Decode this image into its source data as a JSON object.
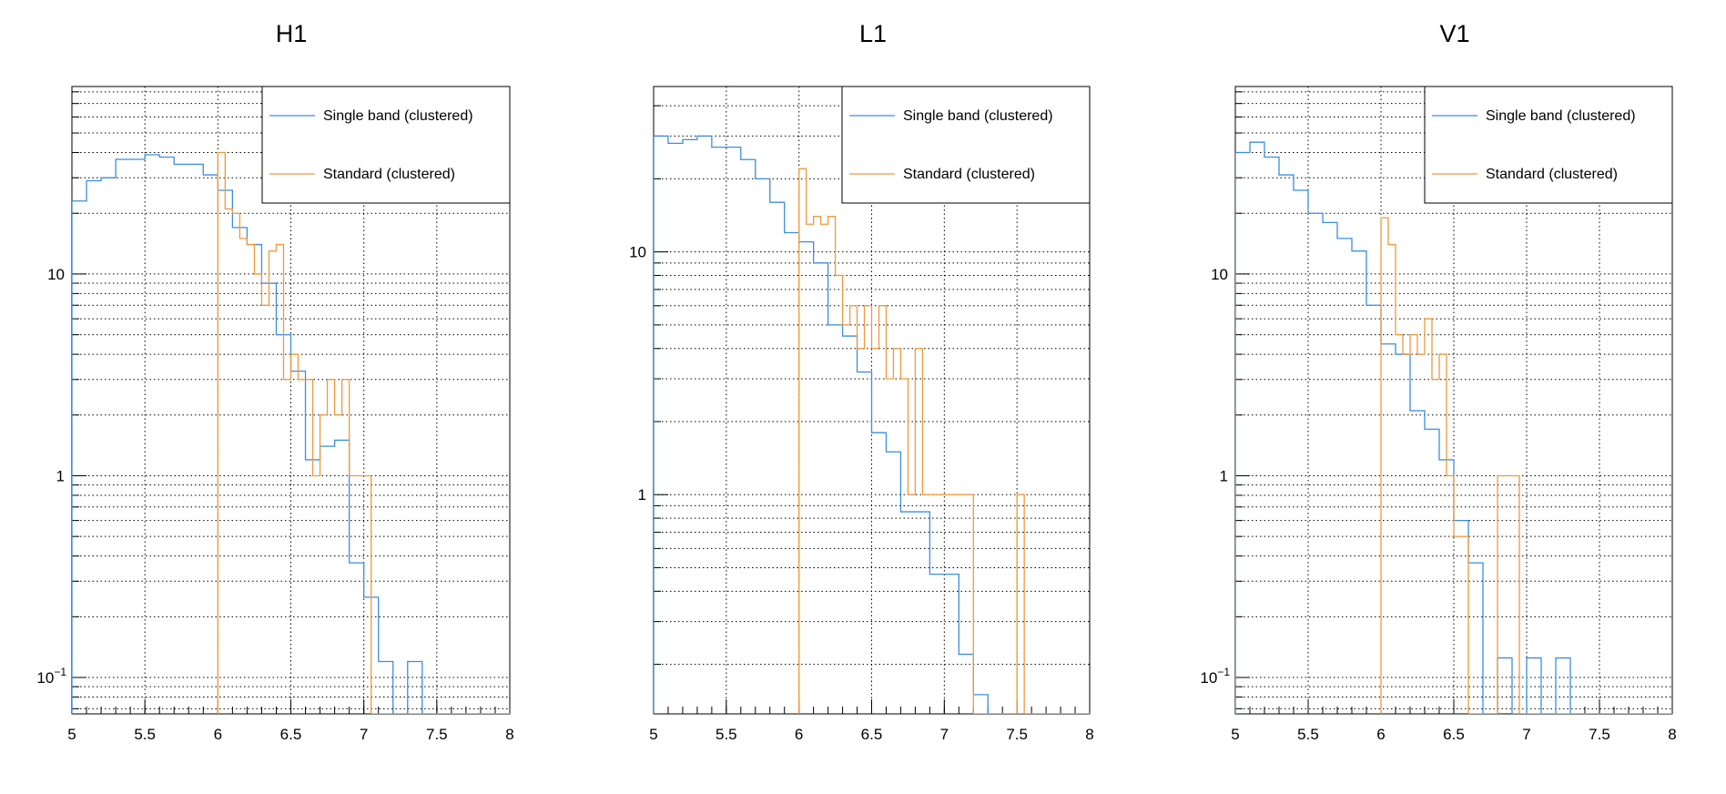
{
  "chart_data": [
    {
      "type": "line",
      "title": "H1",
      "xlim": [
        5,
        8
      ],
      "ylim": [
        0.066,
        85
      ],
      "yscale": "log",
      "x_ticks": [
        "5",
        "5.5",
        "6",
        "6.5",
        "7",
        "7.5",
        "8"
      ],
      "y_ticks": [
        {
          "value": 0.1,
          "label": "10",
          "exp": "−1"
        },
        {
          "value": 1,
          "label": "1"
        },
        {
          "value": 10,
          "label": "10"
        }
      ],
      "grid": true,
      "legend_position": "top-right",
      "bin_width": 0.1,
      "series": [
        {
          "name": "Single band (clustered)",
          "color": "#3a8fe0",
          "bins": [
            [
              5.0,
              23
            ],
            [
              5.1,
              29
            ],
            [
              5.2,
              30
            ],
            [
              5.3,
              37
            ],
            [
              5.4,
              37
            ],
            [
              5.5,
              39
            ],
            [
              5.6,
              38
            ],
            [
              5.7,
              35
            ],
            [
              5.8,
              35
            ],
            [
              5.9,
              31
            ],
            [
              6.0,
              26
            ],
            [
              6.1,
              17
            ],
            [
              6.2,
              14
            ],
            [
              6.3,
              9
            ],
            [
              6.4,
              5
            ],
            [
              6.5,
              3.3
            ],
            [
              6.6,
              1.2
            ],
            [
              6.7,
              1.4
            ],
            [
              6.8,
              1.5
            ],
            [
              6.9,
              0.37
            ],
            [
              7.0,
              0.25
            ],
            [
              7.1,
              0.12
            ],
            [
              7.2,
              0.06
            ],
            [
              7.3,
              0.12
            ],
            [
              7.4,
              0.06
            ]
          ]
        },
        {
          "name": "Standard (clustered)",
          "color": "#ef9a3c",
          "bins": [
            [
              6.0,
              40
            ],
            [
              6.05,
              21
            ],
            [
              6.1,
              20
            ],
            [
              6.15,
              15
            ],
            [
              6.2,
              14
            ],
            [
              6.25,
              10
            ],
            [
              6.3,
              7
            ],
            [
              6.35,
              13
            ],
            [
              6.4,
              14
            ],
            [
              6.45,
              3
            ],
            [
              6.5,
              4
            ],
            [
              6.55,
              3
            ],
            [
              6.6,
              3
            ],
            [
              6.65,
              1
            ],
            [
              6.7,
              2
            ],
            [
              6.75,
              3
            ],
            [
              6.8,
              2
            ],
            [
              6.85,
              3
            ],
            [
              6.9,
              1
            ],
            [
              6.95,
              1
            ],
            [
              7.0,
              1
            ]
          ]
        }
      ]
    },
    {
      "type": "line",
      "title": "L1",
      "xlim": [
        5,
        8
      ],
      "ylim": [
        0.125,
        48
      ],
      "yscale": "log",
      "x_ticks": [
        "5",
        "5.5",
        "6",
        "6.5",
        "7",
        "7.5",
        "8"
      ],
      "y_ticks": [
        {
          "value": 1,
          "label": "1"
        },
        {
          "value": 10,
          "label": "10"
        }
      ],
      "grid": true,
      "legend_position": "top-right",
      "bin_width": 0.1,
      "series": [
        {
          "name": "Single band (clustered)",
          "color": "#3a8fe0",
          "bins": [
            [
              5.0,
              30
            ],
            [
              5.1,
              28
            ],
            [
              5.2,
              29
            ],
            [
              5.3,
              30
            ],
            [
              5.4,
              27
            ],
            [
              5.5,
              27
            ],
            [
              5.6,
              24
            ],
            [
              5.7,
              20
            ],
            [
              5.8,
              16
            ],
            [
              5.9,
              12
            ],
            [
              6.0,
              11
            ],
            [
              6.1,
              9
            ],
            [
              6.2,
              5
            ],
            [
              6.3,
              4.5
            ],
            [
              6.4,
              3.2
            ],
            [
              6.5,
              1.8
            ],
            [
              6.6,
              1.5
            ],
            [
              6.7,
              0.85
            ],
            [
              6.8,
              0.85
            ],
            [
              6.9,
              0.47
            ],
            [
              7.0,
              0.47
            ],
            [
              7.1,
              0.22
            ],
            [
              7.2,
              0.15
            ]
          ]
        },
        {
          "name": "Standard (clustered)",
          "color": "#ef9a3c",
          "bins": [
            [
              6.0,
              22
            ],
            [
              6.05,
              13
            ],
            [
              6.1,
              14
            ],
            [
              6.15,
              13
            ],
            [
              6.2,
              14
            ],
            [
              6.25,
              8
            ],
            [
              6.3,
              5
            ],
            [
              6.35,
              6
            ],
            [
              6.4,
              4
            ],
            [
              6.45,
              6
            ],
            [
              6.5,
              4
            ],
            [
              6.55,
              6
            ],
            [
              6.6,
              3
            ],
            [
              6.65,
              4
            ],
            [
              6.7,
              3
            ],
            [
              6.75,
              1
            ],
            [
              6.8,
              4
            ],
            [
              6.85,
              1
            ],
            [
              6.9,
              1
            ],
            [
              6.95,
              1
            ],
            [
              7.0,
              1
            ],
            [
              7.05,
              1
            ],
            [
              7.1,
              1
            ],
            [
              7.15,
              1
            ],
            [
              7.5,
              1
            ]
          ]
        }
      ]
    },
    {
      "type": "line",
      "title": "V1",
      "xlim": [
        5,
        8
      ],
      "ylim": [
        0.066,
        85
      ],
      "yscale": "log",
      "x_ticks": [
        "5",
        "5.5",
        "6",
        "6.5",
        "7",
        "7.5",
        "8"
      ],
      "y_ticks": [
        {
          "value": 0.1,
          "label": "10",
          "exp": "−1"
        },
        {
          "value": 1,
          "label": "1"
        },
        {
          "value": 10,
          "label": "10"
        }
      ],
      "grid": true,
      "legend_position": "top-right",
      "bin_width": 0.1,
      "series": [
        {
          "name": "Single band (clustered)",
          "color": "#3a8fe0",
          "bins": [
            [
              5.0,
              40
            ],
            [
              5.1,
              45
            ],
            [
              5.2,
              38
            ],
            [
              5.3,
              31
            ],
            [
              5.4,
              26
            ],
            [
              5.5,
              20
            ],
            [
              5.6,
              18
            ],
            [
              5.7,
              15
            ],
            [
              5.8,
              13
            ],
            [
              5.9,
              7
            ],
            [
              6.0,
              4.5
            ],
            [
              6.1,
              4
            ],
            [
              6.2,
              2.1
            ],
            [
              6.3,
              1.7
            ],
            [
              6.4,
              1.2
            ],
            [
              6.5,
              0.6
            ],
            [
              6.6,
              0.37
            ],
            [
              6.7,
              0.06
            ],
            [
              6.8,
              0.125
            ],
            [
              6.9,
              0.06
            ],
            [
              7.0,
              0.125
            ],
            [
              7.1,
              0.06
            ],
            [
              7.2,
              0.125
            ],
            [
              7.3,
              0.06
            ]
          ]
        },
        {
          "name": "Standard (clustered)",
          "color": "#ef9a3c",
          "bins": [
            [
              6.0,
              19
            ],
            [
              6.05,
              14
            ],
            [
              6.1,
              5
            ],
            [
              6.15,
              4
            ],
            [
              6.2,
              5
            ],
            [
              6.25,
              4
            ],
            [
              6.3,
              6
            ],
            [
              6.35,
              3
            ],
            [
              6.4,
              4
            ],
            [
              6.45,
              1
            ],
            [
              6.5,
              0.5
            ],
            [
              6.55,
              0.5
            ],
            [
              6.8,
              1
            ],
            [
              6.85,
              1
            ],
            [
              6.9,
              1
            ],
            [
              6.95,
              0.066
            ]
          ]
        }
      ]
    }
  ]
}
